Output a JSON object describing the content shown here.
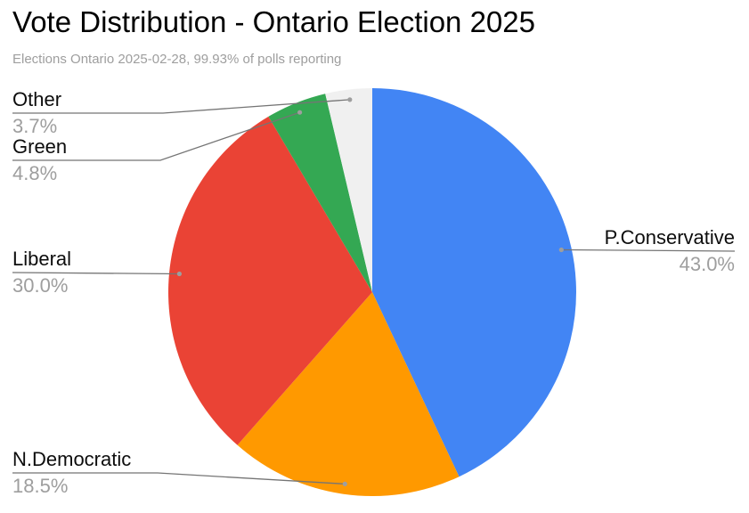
{
  "chart_data": {
    "type": "pie",
    "title": "Vote Distribution - Ontario Election 2025",
    "subtitle": "Elections Ontario 2025-02-28, 99.93% of polls reporting",
    "slices": [
      {
        "label": "P.Conservative",
        "value": 43.0,
        "pct_label": "43.0%",
        "color": "#4285F4"
      },
      {
        "label": "N.Democratic",
        "value": 18.5,
        "pct_label": "18.5%",
        "color": "#FF9900"
      },
      {
        "label": "Liberal",
        "value": 30.0,
        "pct_label": "30.0%",
        "color": "#EA4335"
      },
      {
        "label": "Green",
        "value": 4.8,
        "pct_label": "4.8%",
        "color": "#34A853"
      },
      {
        "label": "Other",
        "value": 3.7,
        "pct_label": "3.7%",
        "color": "#F0F0F0"
      }
    ],
    "layout": {
      "start_angle_deg": 0,
      "direction": "clockwise",
      "labels": "outside-with-leader-lines",
      "legend": "none",
      "background": "#FFFFFF"
    },
    "colors": {
      "title_text": "#000000",
      "label_text": "#0D0D0D",
      "percent_text": "#9E9E9E",
      "subtitle_text": "#9E9E9E",
      "leader_line": "#757575",
      "leader_dot": "#9E9E9E"
    }
  }
}
